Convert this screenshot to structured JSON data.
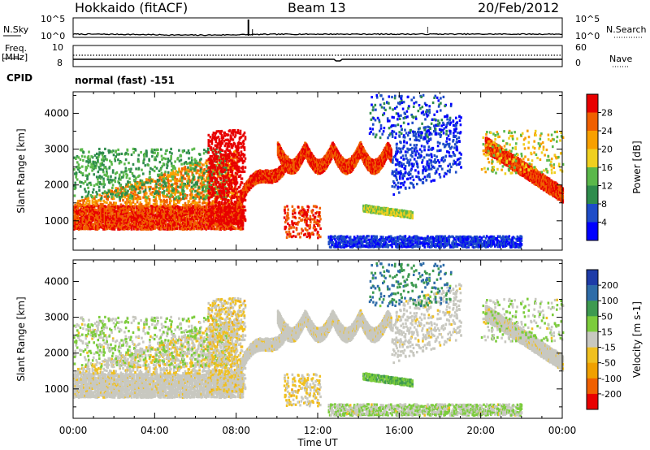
{
  "header": {
    "site": "Hokkaido (fitACF)",
    "beam": "Beam 13",
    "date": "20/Feb/2012"
  },
  "noise_panel": {
    "left_label": "N.Sky",
    "right_label": "N.Search",
    "left_ticks": [
      "10^5",
      "10^0"
    ],
    "right_ticks": [
      "10^5",
      "10^0"
    ]
  },
  "freq_panel": {
    "left_label_top": "Freq.",
    "left_label_unit": "[MHz]",
    "left_ticks": [
      "10",
      "8"
    ],
    "right_label": "Nave",
    "right_ticks": [
      "60",
      "0"
    ]
  },
  "cpid": {
    "label": "CPID",
    "value": "normal (fast) -151"
  },
  "chart_data": [
    {
      "type": "heatmap",
      "name": "power",
      "ylabel": "Slant Range [km]",
      "xlabel": "Time UT",
      "ylim": [
        180,
        4600
      ],
      "yticks": [
        1000,
        2000,
        3000,
        4000
      ],
      "xlim": [
        0,
        24
      ],
      "xticks": [
        "00:00",
        "04:00",
        "08:00",
        "12:00",
        "16:00",
        "20:00",
        "00:00"
      ],
      "colorbar": {
        "label": "Power [dB]",
        "ticks": [
          "4",
          "8",
          "12",
          "16",
          "20",
          "24",
          "28"
        ],
        "colors": [
          "#0000ff",
          "#1e4cc8",
          "#2e8c4c",
          "#5ab84a",
          "#f0d020",
          "#f8a000",
          "#f06000",
          "#e80000"
        ]
      }
    },
    {
      "type": "heatmap",
      "name": "velocity",
      "ylabel": "Slant Range [km]",
      "xlabel": "Time UT",
      "ylim": [
        180,
        4600
      ],
      "yticks": [
        1000,
        2000,
        3000,
        4000
      ],
      "xlim": [
        0,
        24
      ],
      "xticks": [
        "00:00",
        "04:00",
        "08:00",
        "12:00",
        "16:00",
        "20:00",
        "00:00"
      ],
      "colorbar": {
        "label": "Velocity [m s-1]",
        "ticks": [
          "200",
          "100",
          "50",
          "15",
          "-15",
          "-50",
          "-100",
          "-200"
        ],
        "colors": [
          "#1e3ca8",
          "#2e6ca8",
          "#3e9a50",
          "#7ccc3c",
          "#c8c8c0",
          "#f0c020",
          "#f0a000",
          "#f06000",
          "#e80000"
        ]
      }
    }
  ],
  "xaxis_title": "Time UT"
}
